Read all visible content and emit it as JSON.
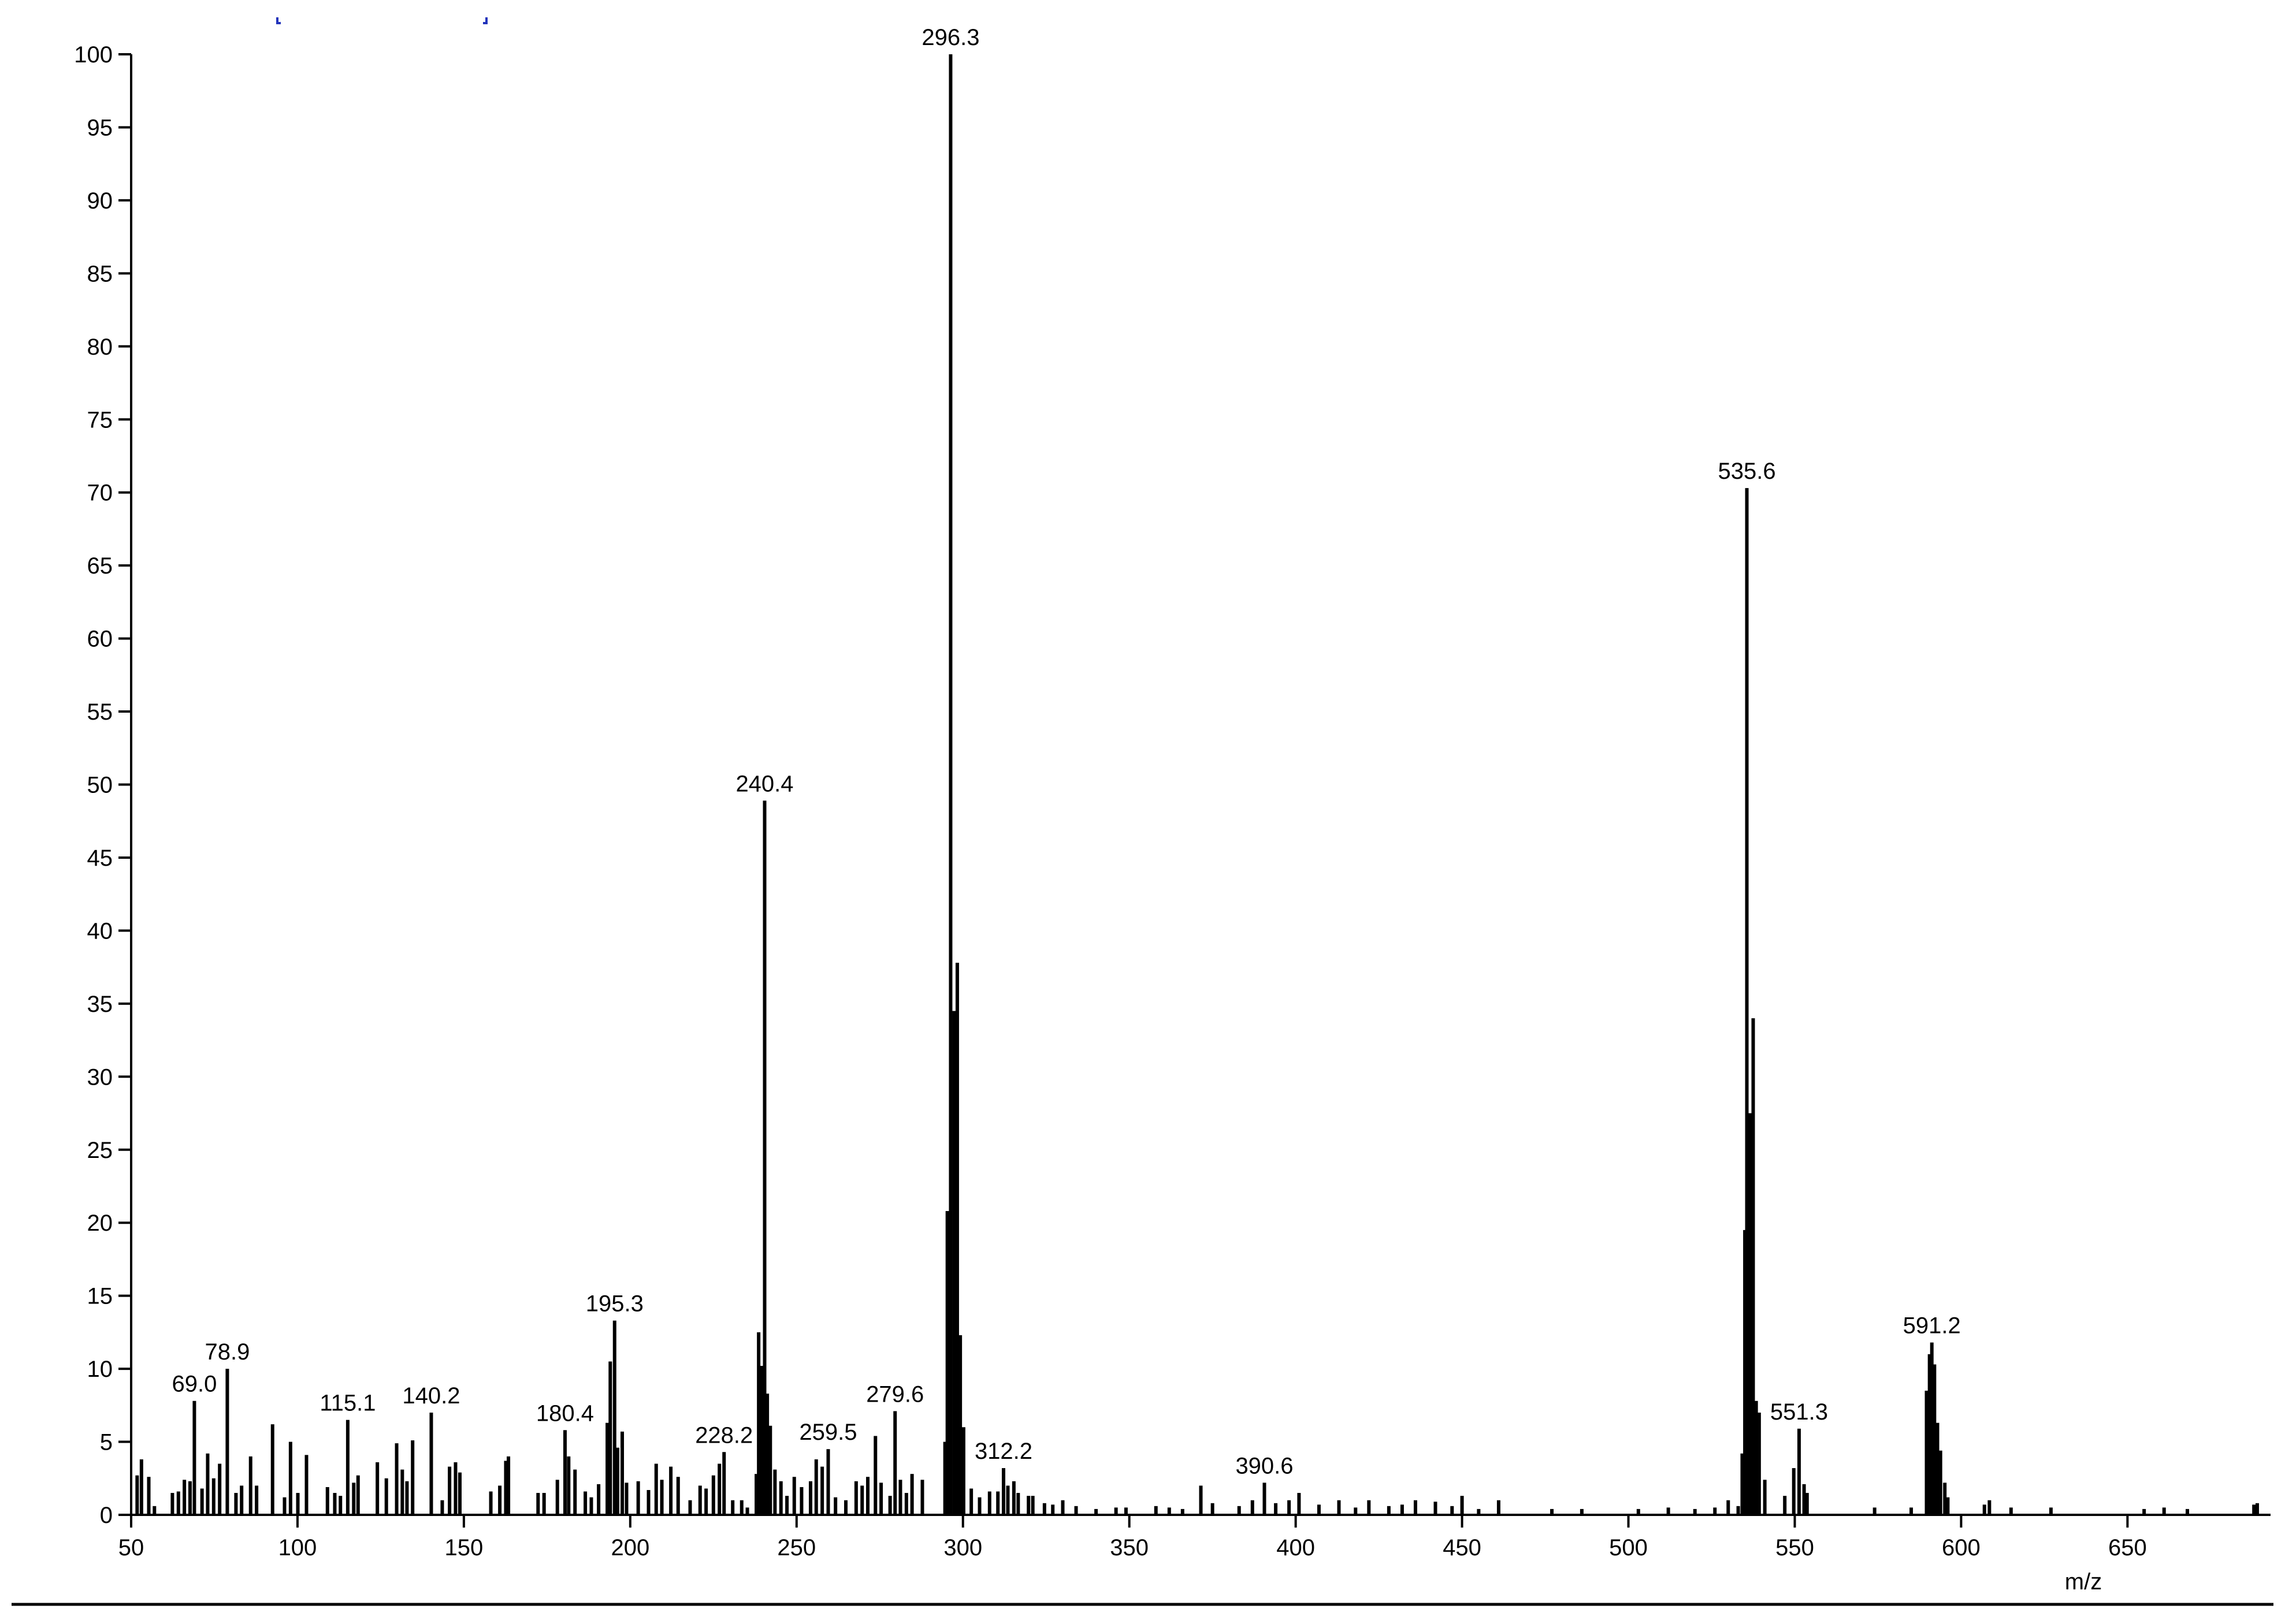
{
  "chart_data": {
    "type": "stick",
    "x_axis_label": "m/z",
    "color": "#000000",
    "xlim": [
      50,
      693
    ],
    "ylim": [
      0,
      100
    ],
    "xticks": [
      50,
      100,
      150,
      200,
      250,
      300,
      350,
      400,
      450,
      500,
      550,
      600,
      650
    ],
    "yticks": [
      0,
      5,
      10,
      15,
      20,
      25,
      30,
      35,
      40,
      45,
      50,
      55,
      60,
      65,
      70,
      75,
      80,
      85,
      90,
      95,
      100
    ],
    "x": [
      51.8,
      53.1,
      55.3,
      57.0,
      62.4,
      64.2,
      66.0,
      67.7,
      69.0,
      71.3,
      73.0,
      74.8,
      76.6,
      78.9,
      81.5,
      83.2,
      85.9,
      87.7,
      92.5,
      96.1,
      97.9,
      100.1,
      102.7,
      109.0,
      111.2,
      112.9,
      115.1,
      116.9,
      118.2,
      124.0,
      126.7,
      129.8,
      131.5,
      132.9,
      134.6,
      140.2,
      143.5,
      145.7,
      147.5,
      148.8,
      158.1,
      160.8,
      162.6,
      163.4,
      172.3,
      174.1,
      178.1,
      180.4,
      181.5,
      183.4,
      186.5,
      188.3,
      190.5,
      193.1,
      194.0,
      195.3,
      196.2,
      197.6,
      198.9,
      202.4,
      205.5,
      207.8,
      209.5,
      212.2,
      214.4,
      218.0,
      221.0,
      222.8,
      225.0,
      226.8,
      228.2,
      230.8,
      233.5,
      235.2,
      237.9,
      238.6,
      239.4,
      240.4,
      241.2,
      242.1,
      243.5,
      245.3,
      247.1,
      249.3,
      251.5,
      254.2,
      255.9,
      257.7,
      259.5,
      261.7,
      264.8,
      267.9,
      269.7,
      271.4,
      273.7,
      275.4,
      278.1,
      279.6,
      281.2,
      283.0,
      284.7,
      287.8,
      294.6,
      295.3,
      296.3,
      297.3,
      298.3,
      299.2,
      300.2,
      302.5,
      305.0,
      308.0,
      310.5,
      312.2,
      313.5,
      315.3,
      316.6,
      319.7,
      321.0,
      324.5,
      327.0,
      330.0,
      334.0,
      340.0,
      346.0,
      349.0,
      358.0,
      362.0,
      366.0,
      371.5,
      375.0,
      383.0,
      387.0,
      390.6,
      394.0,
      398.0,
      401.0,
      407.0,
      413.0,
      418.0,
      422.0,
      428.0,
      432.0,
      436.0,
      442.0,
      447.0,
      450.0,
      455.0,
      461.0,
      477.0,
      486.0,
      503.0,
      512.0,
      520.0,
      526.0,
      530.0,
      533.0,
      534.2,
      535.0,
      535.6,
      536.6,
      537.5,
      538.4,
      539.3,
      541.0,
      547.0,
      549.7,
      551.3,
      552.8,
      553.7,
      574.0,
      585.0,
      589.6,
      590.5,
      591.2,
      592.0,
      592.9,
      593.8,
      595.1,
      596.0,
      607.0,
      608.5,
      615.0,
      627.0,
      655.0,
      661.0,
      668.0,
      688.0,
      689.0
    ],
    "values": [
      2.7,
      3.8,
      2.6,
      0.6,
      1.5,
      1.6,
      2.4,
      2.3,
      7.8,
      1.8,
      4.2,
      2.5,
      3.5,
      10.0,
      1.5,
      2.0,
      4.0,
      2.0,
      6.2,
      1.2,
      5.0,
      1.5,
      4.1,
      1.9,
      1.5,
      1.3,
      6.5,
      2.2,
      2.7,
      3.6,
      2.5,
      4.9,
      3.1,
      2.3,
      5.1,
      7.0,
      1.0,
      3.3,
      3.6,
      2.9,
      1.6,
      2.0,
      3.7,
      4.0,
      1.5,
      1.5,
      2.4,
      5.8,
      4.0,
      3.1,
      1.6,
      1.2,
      2.1,
      6.3,
      10.5,
      13.3,
      4.6,
      5.7,
      2.2,
      2.3,
      1.7,
      3.5,
      2.4,
      3.3,
      2.6,
      1.0,
      2.0,
      1.8,
      2.7,
      3.5,
      4.3,
      1.0,
      1.0,
      0.5,
      2.8,
      12.5,
      10.2,
      48.9,
      8.3,
      6.1,
      3.1,
      2.3,
      1.3,
      2.6,
      1.9,
      2.3,
      3.8,
      3.3,
      4.5,
      1.2,
      1.0,
      2.3,
      2.0,
      2.6,
      5.4,
      2.2,
      1.3,
      7.1,
      2.4,
      1.5,
      2.8,
      2.4,
      5.0,
      20.8,
      100,
      34.5,
      37.8,
      12.3,
      6.0,
      1.8,
      1.2,
      1.6,
      1.6,
      3.2,
      2.0,
      2.3,
      1.5,
      1.3,
      1.3,
      0.8,
      0.7,
      1.0,
      0.6,
      0.4,
      0.5,
      0.5,
      0.6,
      0.5,
      0.4,
      2.0,
      0.8,
      0.6,
      1.0,
      2.2,
      0.8,
      1.0,
      1.5,
      0.7,
      1.0,
      0.5,
      1.0,
      0.6,
      0.7,
      1.0,
      0.9,
      0.6,
      1.3,
      0.4,
      1.0,
      0.4,
      0.4,
      0.4,
      0.5,
      0.4,
      0.5,
      1.0,
      0.6,
      4.2,
      19.5,
      70.3,
      27.5,
      34.0,
      7.8,
      7.0,
      2.4,
      1.3,
      3.2,
      5.9,
      2.1,
      1.5,
      0.5,
      0.5,
      8.5,
      11.0,
      11.8,
      10.3,
      6.3,
      4.4,
      2.2,
      1.2,
      0.7,
      1.0,
      0.5,
      0.5,
      0.4,
      0.5,
      0.4,
      0.7,
      0.8
    ],
    "x_labels": [
      null,
      null,
      null,
      null,
      null,
      null,
      null,
      null,
      "69.0",
      null,
      null,
      null,
      null,
      "78.9",
      null,
      null,
      null,
      null,
      null,
      null,
      null,
      null,
      null,
      null,
      null,
      null,
      "115.1",
      null,
      null,
      null,
      null,
      null,
      null,
      null,
      null,
      "140.2",
      null,
      null,
      null,
      null,
      null,
      null,
      null,
      null,
      null,
      null,
      null,
      "180.4",
      null,
      null,
      null,
      null,
      null,
      null,
      null,
      "195.3",
      null,
      null,
      null,
      null,
      null,
      null,
      null,
      null,
      null,
      null,
      null,
      null,
      null,
      null,
      "228.2",
      null,
      null,
      null,
      null,
      null,
      null,
      "240.4",
      null,
      null,
      null,
      null,
      null,
      null,
      null,
      null,
      null,
      null,
      "259.5",
      null,
      null,
      null,
      null,
      null,
      null,
      null,
      null,
      "279.6",
      null,
      null,
      null,
      null,
      null,
      null,
      "296.3",
      null,
      null,
      null,
      null,
      null,
      null,
      null,
      null,
      "312.2",
      null,
      null,
      null,
      null,
      null,
      null,
      null,
      null,
      null,
      null,
      null,
      null,
      null,
      null,
      null,
      null,
      null,
      null,
      null,
      "390.6",
      null,
      null,
      null,
      null,
      null,
      null,
      null,
      null,
      null,
      null,
      null,
      null,
      null,
      null,
      null,
      null,
      null,
      null,
      null,
      null,
      null,
      null,
      null,
      null,
      null,
      "535.6",
      null,
      null,
      null,
      null,
      null,
      null,
      null,
      "551.3",
      null,
      null,
      null,
      null,
      null,
      null,
      "591.2",
      null,
      null,
      null,
      null,
      null,
      null,
      null,
      null,
      null,
      null,
      null,
      null,
      null,
      null
    ]
  }
}
